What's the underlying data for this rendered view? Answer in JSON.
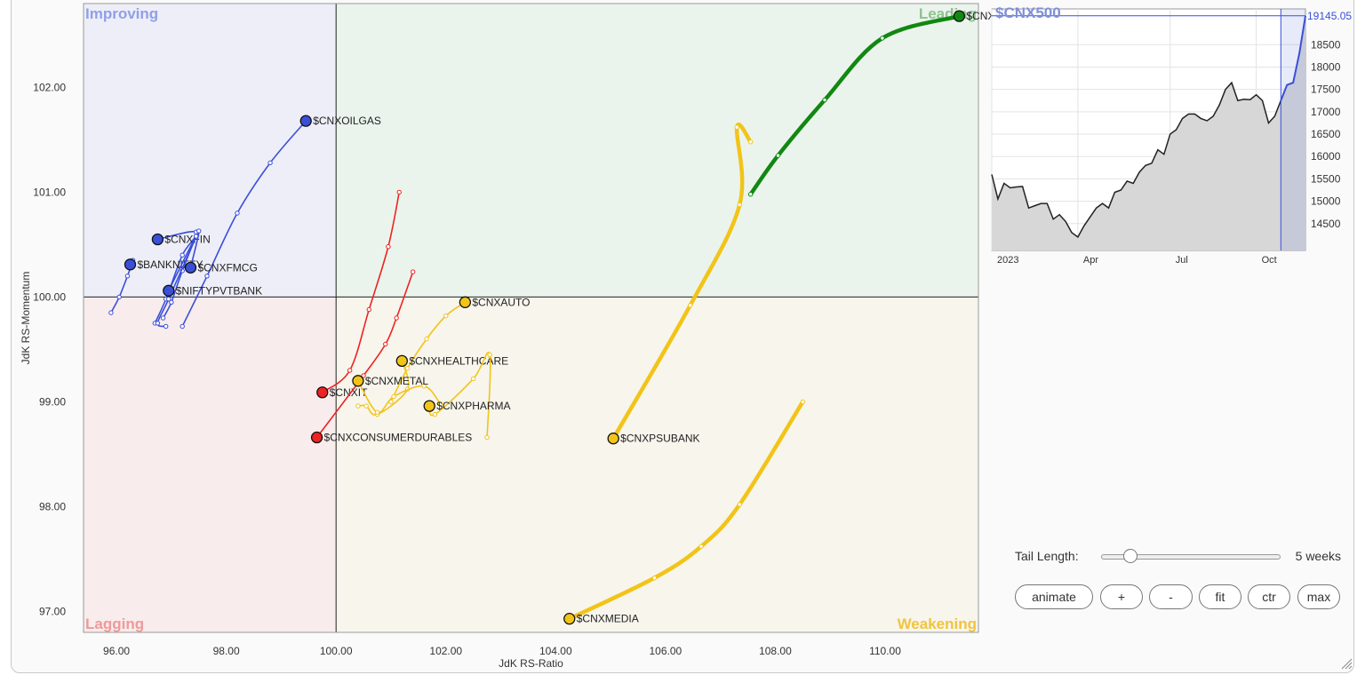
{
  "chart_data": [
    {
      "type": "scatter",
      "xlabel": "JdK RS-Ratio",
      "ylabel": "JdK RS-Momentum",
      "xlim": [
        95.4,
        111.7
      ],
      "ylim": [
        96.8,
        102.8
      ],
      "center": [
        100,
        100
      ],
      "xticks": [
        "96.00",
        "98.00",
        "100.00",
        "102.00",
        "104.00",
        "106.00",
        "108.00",
        "110.00"
      ],
      "yticks": [
        "97.00",
        "98.00",
        "99.00",
        "100.00",
        "101.00",
        "102.00"
      ],
      "quadrants": {
        "improving": "Improving",
        "leading": "Leading",
        "lagging": "Lagging",
        "weakening": "Weakening"
      },
      "series": [
        {
          "name": "$CNXREALTY",
          "color": "#118811",
          "thick": true,
          "points": [
            [
              107.55,
              100.98
            ],
            [
              108.05,
              101.35
            ],
            [
              108.9,
              101.88
            ],
            [
              109.95,
              102.47
            ],
            [
              111.35,
              102.68
            ]
          ]
        },
        {
          "name": "$CNXOILGAS",
          "color": "#3a4fd8",
          "thick": false,
          "points": [
            [
              97.2,
              99.72
            ],
            [
              97.65,
              100.2
            ],
            [
              98.2,
              100.8
            ],
            [
              98.8,
              101.28
            ],
            [
              99.45,
              101.68
            ]
          ]
        },
        {
          "name": "$CNXFIN",
          "color": "#3a4fd8",
          "thick": false,
          "points": [
            [
              96.7,
              99.75
            ],
            [
              96.9,
              99.98
            ],
            [
              97.2,
              100.4
            ],
            [
              97.45,
              100.62
            ],
            [
              96.75,
              100.55
            ]
          ]
        },
        {
          "name": "$BANKNIFTY",
          "color": "#3a4fd8",
          "thick": false,
          "points": [
            [
              95.9,
              99.85
            ],
            [
              96.05,
              100.0
            ],
            [
              96.2,
              100.2
            ],
            [
              96.3,
              100.35
            ],
            [
              96.25,
              100.31
            ]
          ]
        },
        {
          "name": "$CNXFMCG",
          "color": "#3a4fd8",
          "thick": false,
          "points": [
            [
              96.85,
              99.8
            ],
            [
              97.0,
              99.95
            ],
            [
              97.2,
              100.25
            ],
            [
              97.5,
              100.63
            ],
            [
              97.35,
              100.28
            ]
          ]
        },
        {
          "name": "$NIFTYPVTBANK",
          "color": "#3a4fd8",
          "thick": false,
          "points": [
            [
              96.9,
              99.72
            ],
            [
              96.75,
              99.75
            ],
            [
              96.95,
              99.98
            ],
            [
              97.45,
              100.58
            ],
            [
              96.95,
              100.06
            ]
          ]
        },
        {
          "name": "$CNXIT",
          "color": "#ee2222",
          "thick": false,
          "points": [
            [
              101.15,
              101.0
            ],
            [
              100.95,
              100.48
            ],
            [
              100.6,
              99.88
            ],
            [
              100.25,
              99.3
            ],
            [
              99.75,
              99.09
            ]
          ]
        },
        {
          "name": "$CNXCONSUMERDURABLES",
          "color": "#ee2222",
          "thick": false,
          "points": [
            [
              101.4,
              100.24
            ],
            [
              101.1,
              99.8
            ],
            [
              100.9,
              99.55
            ],
            [
              100.5,
              99.25
            ],
            [
              99.65,
              98.66
            ]
          ]
        },
        {
          "name": "$CNXAUTO",
          "color": "#f2c418",
          "thick": false,
          "points": [
            [
              101.0,
              99.0
            ],
            [
              101.3,
              99.32
            ],
            [
              101.65,
              99.6
            ],
            [
              102.0,
              99.82
            ],
            [
              102.35,
              99.95
            ]
          ]
        },
        {
          "name": "$CNXHEALTHCARE",
          "color": "#f2c418",
          "thick": false,
          "points": [
            [
              100.4,
              98.96
            ],
            [
              100.55,
              98.96
            ],
            [
              100.75,
              98.88
            ],
            [
              101.3,
              99.12
            ],
            [
              101.2,
              99.39
            ]
          ]
        },
        {
          "name": "$CNXMETAL",
          "color": "#f2c418",
          "thick": false,
          "points": [
            [
              101.9,
              98.98
            ],
            [
              101.6,
              99.15
            ],
            [
              101.05,
              99.05
            ],
            [
              100.75,
              98.9
            ],
            [
              100.4,
              99.2
            ]
          ]
        },
        {
          "name": "$CNXPHARMA",
          "color": "#f2c418",
          "thick": false,
          "points": [
            [
              102.75,
              98.66
            ],
            [
              102.8,
              99.45
            ],
            [
              102.5,
              99.22
            ],
            [
              101.8,
              98.88
            ],
            [
              101.7,
              98.96
            ]
          ]
        },
        {
          "name": "$CNXPSUBANK",
          "color": "#f2c418",
          "thick": true,
          "points": [
            [
              107.55,
              101.48
            ],
            [
              107.3,
              101.62
            ],
            [
              107.35,
              100.88
            ],
            [
              106.45,
              99.92
            ],
            [
              105.05,
              98.65
            ]
          ]
        },
        {
          "name": "$CNXMEDIA",
          "color": "#f2c418",
          "thick": true,
          "points": [
            [
              108.5,
              99.0
            ],
            [
              107.35,
              98.02
            ],
            [
              106.65,
              97.62
            ],
            [
              105.8,
              97.32
            ],
            [
              104.25,
              96.93
            ]
          ]
        }
      ]
    },
    {
      "type": "area",
      "title": "$CNX500",
      "last_value_label": "19145.05",
      "yticks": [
        "18500",
        "18000",
        "17500",
        "17000",
        "16500",
        "16000",
        "15500",
        "15000",
        "14500"
      ],
      "ylim": [
        13900,
        19300
      ],
      "xticks": [
        "2023",
        "Apr",
        "Jul",
        "Oct"
      ],
      "xtick_weeks": [
        0,
        14,
        29,
        43
      ],
      "highlight_start_week": 47,
      "values": [
        15600,
        15050,
        15400,
        15300,
        15320,
        15330,
        14850,
        14900,
        14950,
        14950,
        14600,
        14700,
        14550,
        14300,
        14200,
        14450,
        14650,
        14850,
        14950,
        14850,
        15200,
        15250,
        15450,
        15400,
        15650,
        15800,
        15850,
        16150,
        16050,
        16500,
        16600,
        16850,
        16950,
        16950,
        16850,
        16800,
        16900,
        17150,
        17500,
        17650,
        17250,
        17280,
        17270,
        17380,
        17250,
        16750,
        16900,
        17250,
        17600,
        17650,
        18300,
        19145
      ]
    }
  ],
  "controls": {
    "tail_length_label": "Tail Length:",
    "tail_length_value": "5 weeks",
    "tail_slider_fraction": 0.16,
    "buttons": {
      "animate": "animate",
      "plus": "+",
      "minus": "-",
      "fit": "fit",
      "ctr": "ctr",
      "max": "max"
    }
  }
}
